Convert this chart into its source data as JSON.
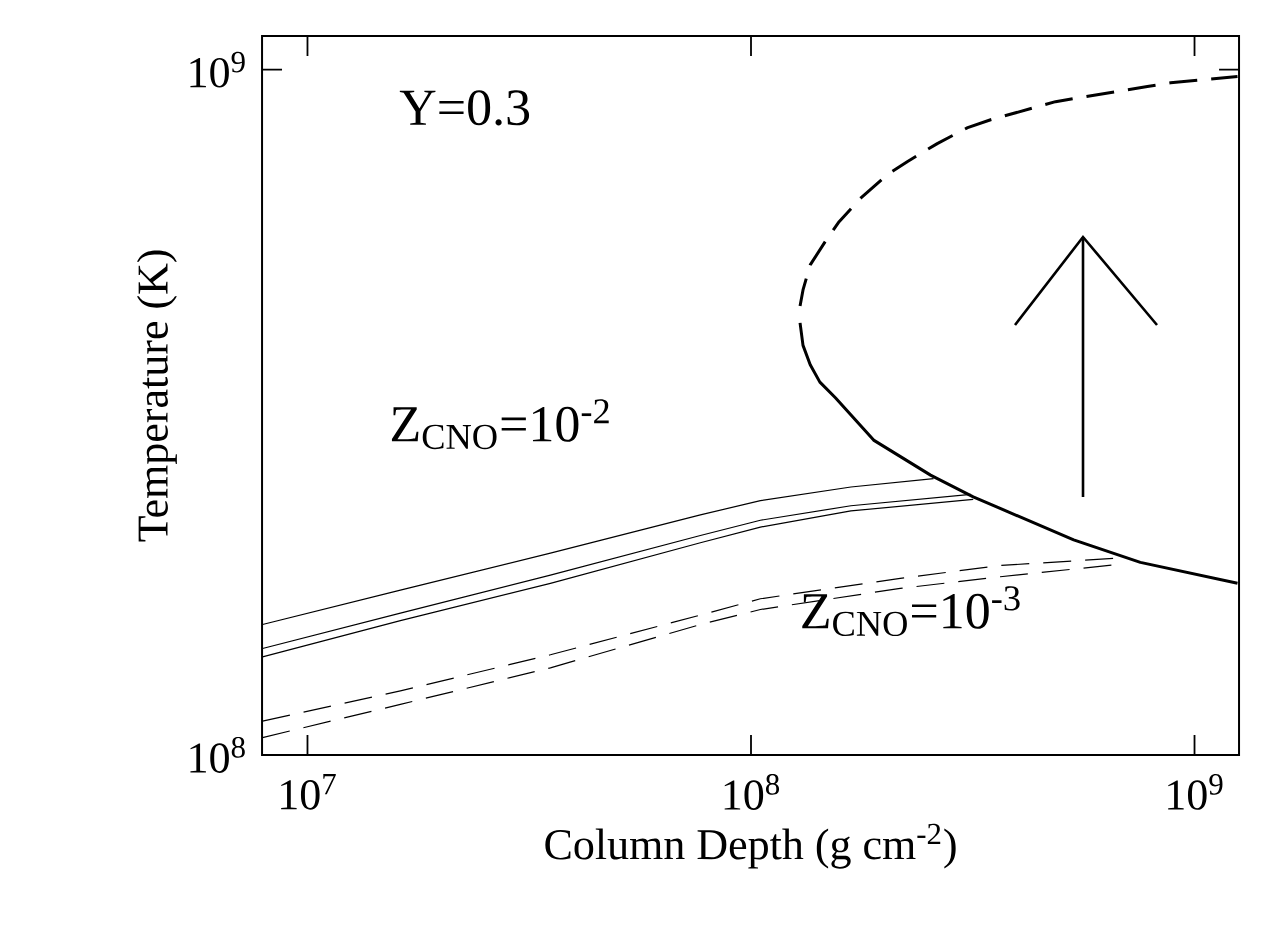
{
  "chart_data": {
    "type": "line",
    "xlabel": "Column Depth (g cm$^{-2}$)",
    "ylabel": "Temperature (K)",
    "log": "xy",
    "xlim": [
      7900000.0,
      1260000000.0
    ],
    "ylim": [
      100000000.0,
      1120000000.0
    ],
    "xticks": [
      {
        "value": 10000000.0,
        "label": "10$^{7}$"
      },
      {
        "value": 100000000.0,
        "label": "10$^{8}$"
      },
      {
        "value": 1000000000.0,
        "label": "10$^{9}$"
      }
    ],
    "yticks": [
      {
        "value": 100000000.0,
        "label": "10$^{8}$"
      },
      {
        "value": 1000000000.0,
        "label": "10$^{9}$"
      }
    ],
    "annotations": [
      "Y=0.3",
      "Z$_{CNO}$=10$^{-2}$",
      "Z$_{CNO}$=10$^{-3}$"
    ],
    "series": [
      {
        "color": "#000000",
        "line_style": "solid",
        "x": [
          7920000.0,
          16200000.0,
          35300000.0,
          76900000.0,
          105000000.0,
          168000000.0,
          258000000.0
        ],
        "values": [
          155000000.0,
          174000000.0,
          197000000.0,
          224000000.0,
          235000000.0,
          246000000.0,
          253000000.0
        ]
      },
      {
        "color": "#000000",
        "line_style": "solid",
        "x": [
          7920000.0,
          16200000.0,
          35300000.0,
          76900000.0,
          105000000.0,
          168000000.0,
          313000000.0
        ],
        "values": [
          143000000.0,
          161000000.0,
          183000000.0,
          209000000.0,
          220000000.0,
          231000000.0,
          240000000.0
        ]
      },
      {
        "color": "#000000",
        "line_style": "solid",
        "x": [
          7920000.0,
          16200000.0,
          35300000.0,
          76900000.0,
          105000000.0,
          168000000.0,
          317000000.0
        ],
        "values": [
          139000000.0,
          157000000.0,
          178000000.0,
          204000000.0,
          215000000.0,
          227000000.0,
          236000000.0
        ]
      },
      {
        "color": "#000000",
        "line_style": "dashed",
        "x": [
          7920000.0,
          16200000.0,
          35300000.0,
          76900000.0,
          105000000.0,
          217000000.0,
          365000000.0,
          692000000.0
        ],
        "values": [
          112000000.0,
          124000000.0,
          140000000.0,
          160000000.0,
          169000000.0,
          181000000.0,
          189000000.0,
          194000000.0
        ]
      },
      {
        "color": "#000000",
        "line_style": "dashed",
        "x": [
          7920000.0,
          16200000.0,
          35300000.0,
          76900000.0,
          105000000.0,
          217000000.0,
          365000000.0,
          692000000.0
        ],
        "values": [
          106000000.0,
          118500000.0,
          134000000.0,
          155000000.0,
          163000000.0,
          175000000.0,
          182000000.0,
          190000000.0
        ]
      },
      {
        "color": "#000000",
        "line_style": "solid",
        "x": [
          129000000.0,
          131000000.0,
          136000000.0,
          143000000.0,
          155000000.0,
          189000000.0,
          254000000.0,
          317000000.0,
          534000000.0,
          755000000.0,
          1250000000.0
        ],
        "values": [
          427000000.0,
          396000000.0,
          371000000.0,
          350000000.0,
          332000000.0,
          288000000.0,
          256000000.0,
          238000000.0,
          206000000.0,
          191000000.0,
          178000000.0
        ]
      },
      {
        "color": "#000000",
        "line_style": "dashed",
        "x": [
          129000000.0,
          131000000.0,
          136000000.0,
          147000000.0,
          158000000.0,
          177000000.0,
          203000000.0,
          225000000.0,
          263000000.0,
          308000000.0,
          347000000.0,
          486000000.0,
          548000000.0,
          783000000.0,
          883000000.0,
          1250000000.0
        ],
        "values": [
          452000000.0,
          477000000.0,
          519000000.0,
          561000000.0,
          600000000.0,
          650000000.0,
          703000000.0,
          734000000.0,
          780000000.0,
          823000000.0,
          845000000.0,
          898000000.0,
          910000000.0,
          945000000.0,
          957000000.0,
          977000000.0
        ]
      }
    ]
  }
}
